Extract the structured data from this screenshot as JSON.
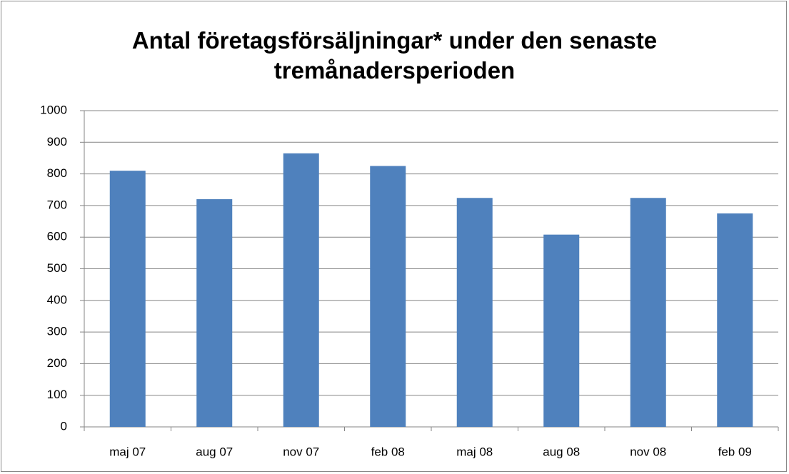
{
  "chart_data": {
    "type": "bar",
    "title": "Antal företagsförsäljningar* under den senaste tremånadersperioden",
    "categories": [
      "maj 07",
      "aug 07",
      "nov 07",
      "feb 08",
      "maj 08",
      "aug 08",
      "nov 08",
      "feb 09"
    ],
    "values": [
      810,
      720,
      865,
      825,
      724,
      608,
      724,
      675
    ],
    "color": "#4f81bd",
    "ylim": [
      0,
      1000
    ],
    "yticks": [
      0,
      100,
      200,
      300,
      400,
      500,
      600,
      700,
      800,
      900,
      1000
    ],
    "grid": true
  }
}
